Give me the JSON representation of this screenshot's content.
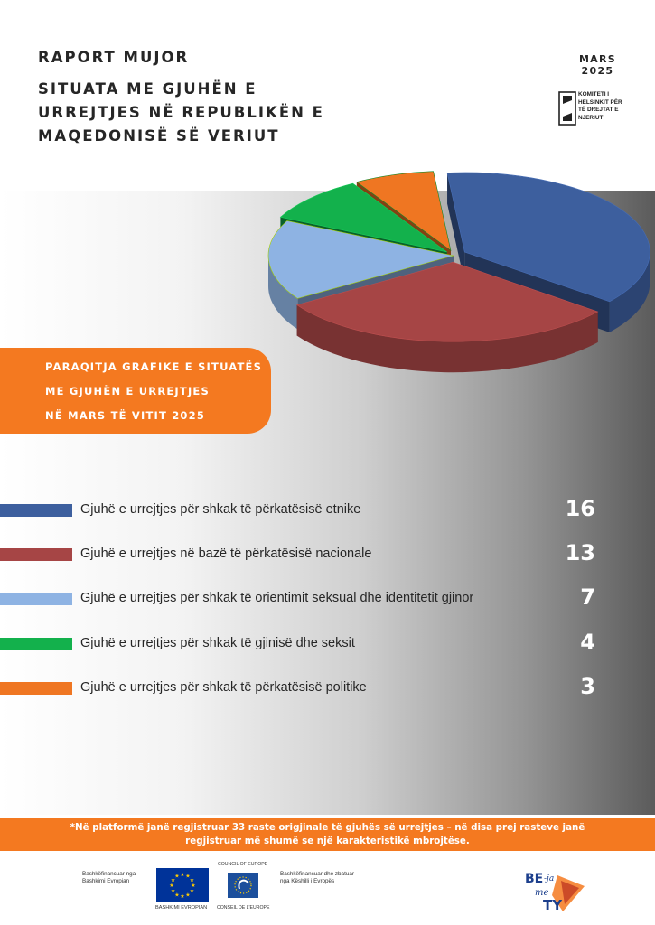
{
  "header": {
    "title": "RAPORT MUJOR",
    "subtitle": "SITUATA ME GJUHËN E URREJTJES NË REPUBLIKËN E MAQEDONISË SË VERIUT",
    "month": "MARS",
    "year": "2025"
  },
  "org": {
    "name_lines": [
      "KOMITETI I",
      "HELSINKIT PËR",
      "TË DREJTAT E",
      "NJERIUT"
    ]
  },
  "banner": {
    "lines": [
      "PARAQITJA GRAFIKE E SITUATËS",
      "ME GJUHËN E URREJTJES",
      "NË MARS TË VITIT 2025"
    ]
  },
  "chart_data": {
    "type": "pie",
    "title": "",
    "categories": [
      "Gjuhë e urrejtjes për shkak të përkatësisë etnike",
      "Gjuhë e urrejtjes në bazë të përkatësisë nacionale",
      "Gjuhë e urrejtjes për shkak të orientimit seksual dhe identitetit gjinor",
      "Gjuhë e urrejtjes për shkak të gjinisë dhe seksit",
      "Gjuhë e urrejtjes për shkak të përkatësisë politike"
    ],
    "values": [
      16,
      13,
      7,
      4,
      3
    ],
    "colors": [
      "#3d5f9e",
      "#a64545",
      "#8eb3e3",
      "#13b14c",
      "#ef7622"
    ],
    "value_labels": [
      "16",
      "13",
      "7",
      "4",
      "3"
    ],
    "legend_position": "bottom"
  },
  "footnote": {
    "line1": "*Në platformë janë regjistruar 33 raste origjinale të gjuhës së urrejtjes – në disa prej rasteve janë",
    "line2": "regjistruar më shumë se një karakteristikë mbrojtëse."
  },
  "funders": {
    "eu_text_lines": [
      "Bashkëfinancuar nga",
      "Bashkimi Evropian"
    ],
    "eu_caption": "BASHKIMI EVROPIAN",
    "coe_top": "COUNCIL OF EUROPE",
    "coe_caption": "CONSEIL DE L'EUROPE",
    "coe_text_lines": [
      "Bashkëfinancuar dhe zbatuar",
      "nga Këshilli i Evropës"
    ],
    "beja_logo_text": [
      "BE",
      "-ja",
      "me",
      "TY"
    ]
  },
  "icons": [
    "helsinki-committee-logo",
    "eu-flag-icon",
    "council-of-europe-logo",
    "be-ja-me-ty-logo"
  ]
}
